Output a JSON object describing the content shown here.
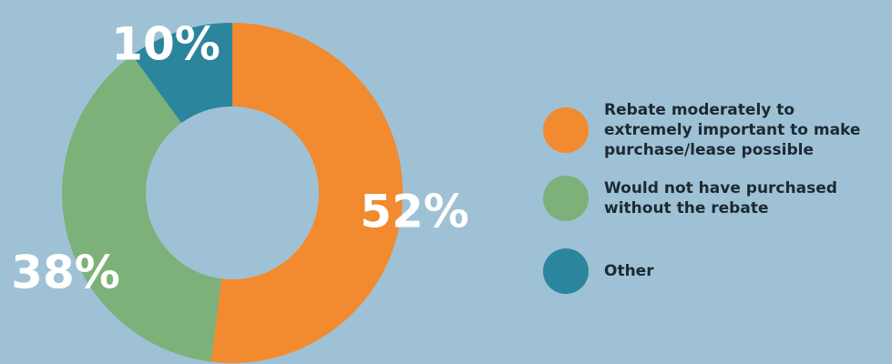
{
  "chart_data": {
    "type": "pie",
    "donut": true,
    "legend_position": "right",
    "slices": [
      {
        "label": "Rebate moderately to extremely important to make purchase/lease possible",
        "value": 52,
        "value_label": "52%",
        "color": "#f28a30"
      },
      {
        "label": "Would not have purchased without the rebate",
        "value": 38,
        "value_label": "38%",
        "color": "#7cb17a"
      },
      {
        "label": "Other",
        "value": 10,
        "value_label": "10%",
        "color": "#2a859d"
      }
    ]
  },
  "background_color": "#9fc1d5"
}
